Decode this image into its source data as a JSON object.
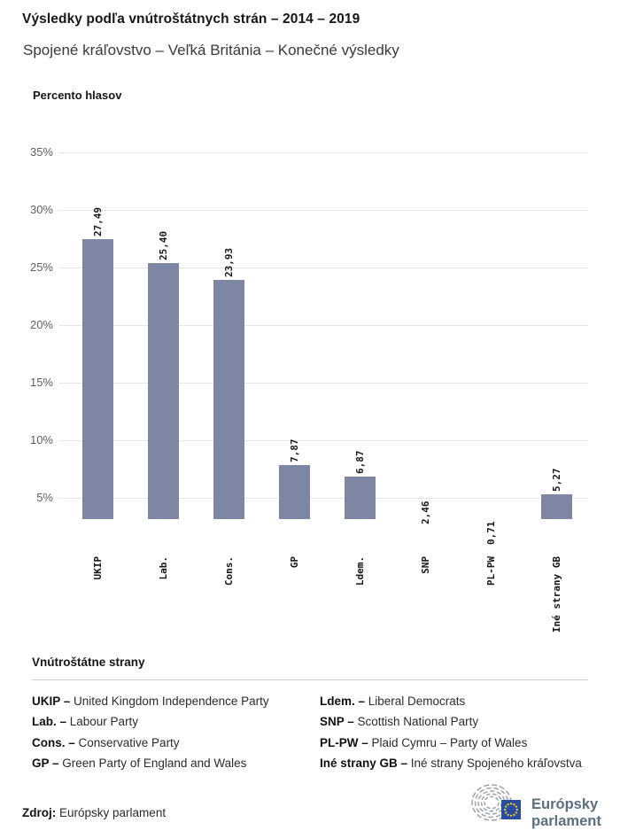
{
  "header": {
    "title": "Výsledky podľa vnútroštátnych strán – 2014 – 2019",
    "subtitle": "Spojené kráľovstvo – Veľká Británia – Konečné výsledky"
  },
  "chart_data": {
    "type": "bar",
    "axis_title": "Percento hlasov",
    "ylabel": "Percento hlasov",
    "xlabel": "",
    "categories": [
      "UKIP",
      "Lab.",
      "Cons.",
      "GP",
      "Ldem.",
      "SNP",
      "PL-PW",
      "Iné strany GB"
    ],
    "values": [
      27.49,
      25.4,
      23.93,
      7.87,
      6.87,
      2.46,
      0.71,
      5.27
    ],
    "value_labels": [
      "27,49",
      "25,40",
      "23,93",
      "7,87",
      "6,87",
      "2,46",
      "0,71",
      "5,27"
    ],
    "ytick_values": [
      35,
      30,
      25,
      20,
      15,
      10,
      5
    ],
    "ytick_labels": [
      "35%",
      "30%",
      "25%",
      "20%",
      "15%",
      "10%",
      "5%"
    ],
    "ylim_visible": [
      3.2,
      36.7
    ],
    "grid": "horizontal",
    "legend_position": "none",
    "bar_color": "#7d87a4"
  },
  "legend": {
    "title": "Vnútroštátne strany",
    "columns": [
      [
        {
          "abbr": "UKIP –",
          "name": "United Kingdom Independence Party"
        },
        {
          "abbr": "Lab. –",
          "name": "Labour Party"
        },
        {
          "abbr": "Cons. –",
          "name": "Conservative Party"
        },
        {
          "abbr": "GP –",
          "name": "Green Party of England and Wales"
        }
      ],
      [
        {
          "abbr": "Ldem. –",
          "name": "Liberal Democrats"
        },
        {
          "abbr": "SNP –",
          "name": "Scottish National Party"
        },
        {
          "abbr": "PL-PW –",
          "name": "Plaid Cymru – Party of Wales"
        },
        {
          "abbr": "Iné strany GB –",
          "name": "Iné strany Spojeného kráľovstva"
        }
      ]
    ]
  },
  "footer": {
    "source_label": "Zdroj:",
    "source_value": "Európsky parlament",
    "logo_line1": "Európsky",
    "logo_line2": "parlament",
    "logo_colors": {
      "flag_blue": "#2a4da0",
      "star_yellow": "#ffd617",
      "arc_gray": "#9aa2aa",
      "wordmark": "#5c6f80"
    }
  }
}
